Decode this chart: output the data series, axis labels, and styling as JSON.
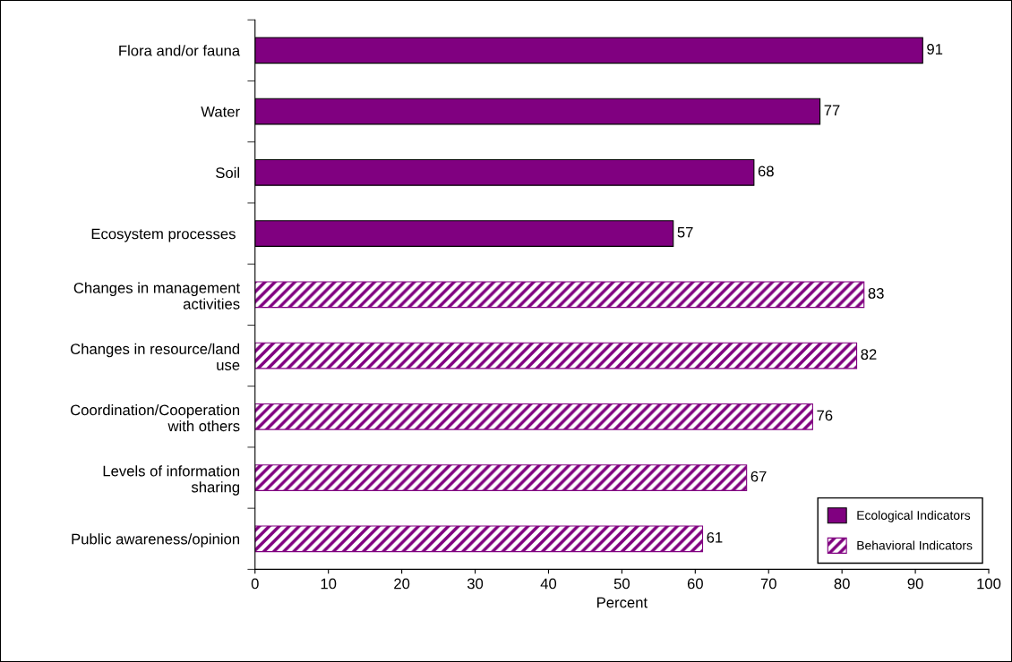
{
  "chart_data": {
    "type": "bar",
    "orientation": "horizontal",
    "xlabel": "Percent",
    "categories": [
      "Flora and/or fauna",
      "Water",
      "Soil",
      "Ecosystem processes ",
      "Changes in management\nactivities",
      "Changes in resource/land\nuse",
      "Coordination/Cooperation\nwith others",
      "Levels of information\nsharing",
      "Public awareness/opinion"
    ],
    "series": [
      {
        "name": "Ecological Indicators",
        "color": "#800080",
        "values": [
          91,
          77,
          68,
          57,
          null,
          null,
          null,
          null,
          null
        ]
      },
      {
        "name": "Behavioral Indicators",
        "color": "#800080",
        "values": [
          null,
          null,
          null,
          null,
          83,
          82,
          76,
          67,
          61
        ]
      }
    ],
    "xlim": [
      0,
      100
    ],
    "xticks": [
      0,
      10,
      20,
      30,
      40,
      50,
      60,
      70,
      80,
      90,
      100
    ],
    "data_labels": true,
    "grid": false,
    "legend": "bottom right"
  }
}
